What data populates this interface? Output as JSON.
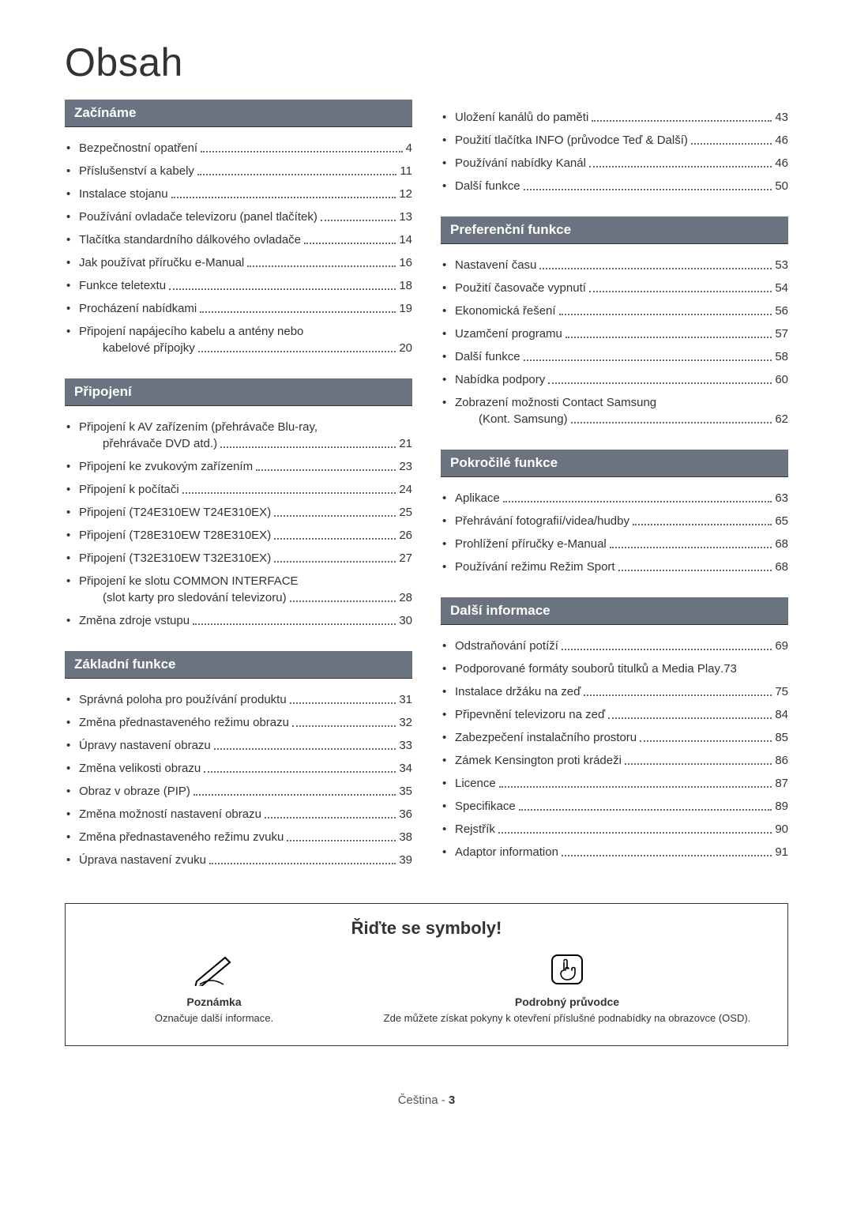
{
  "title": "Obsah",
  "sections_left": [
    {
      "name": "Začínáme",
      "items": [
        {
          "label": "Bezpečnostní opatření",
          "page": "4"
        },
        {
          "label": "Příslušenství a kabely",
          "page": "11"
        },
        {
          "label": "Instalace stojanu",
          "page": "12"
        },
        {
          "label": "Používání ovladače televizoru (panel tlačítek)",
          "page": "13"
        },
        {
          "label": "Tlačítka standardního dálkového ovladače",
          "page": "14"
        },
        {
          "label": "Jak používat příručku e-Manual",
          "page": "16"
        },
        {
          "label": "Funkce teletextu",
          "page": "18"
        },
        {
          "label": "Procházení nabídkami",
          "page": "19"
        },
        {
          "label": "Připojení napájecího kabelu a antény nebo",
          "sub": "kabelové přípojky",
          "page": "20"
        }
      ]
    },
    {
      "name": "Připojení",
      "items": [
        {
          "label": "Připojení k AV zařízením (přehrávače Blu-ray,",
          "sub": "přehrávače DVD atd.)",
          "page": "21"
        },
        {
          "label": "Připojení ke zvukovým zařízením",
          "page": "23"
        },
        {
          "label": "Připojení k počítači",
          "page": "24"
        },
        {
          "label": "Připojení (T24E310EW T24E310EX)",
          "page": "25"
        },
        {
          "label": "Připojení (T28E310EW T28E310EX)",
          "page": "26"
        },
        {
          "label": "Připojení (T32E310EW T32E310EX)",
          "page": "27"
        },
        {
          "label": "Připojení ke slotu COMMON INTERFACE",
          "sub": "(slot karty pro sledování televizoru)",
          "page": "28"
        },
        {
          "label": "Změna zdroje vstupu",
          "page": "30"
        }
      ]
    },
    {
      "name": "Základní funkce",
      "items": [
        {
          "label": "Správná poloha pro používání produktu",
          "page": "31"
        },
        {
          "label": "Změna přednastaveného režimu obrazu",
          "page": "32"
        },
        {
          "label": "Úpravy nastavení obrazu",
          "page": "33"
        },
        {
          "label": "Změna velikosti obrazu",
          "page": "34"
        },
        {
          "label": "Obraz v obraze (PIP)",
          "page": "35"
        },
        {
          "label": "Změna možností nastavení obrazu",
          "page": "36"
        },
        {
          "label": "Změna přednastaveného režimu zvuku",
          "page": "38"
        },
        {
          "label": "Úprava nastavení zvuku",
          "page": "39"
        }
      ]
    }
  ],
  "sections_right": [
    {
      "name": "",
      "items": [
        {
          "label": "Uložení kanálů do paměti",
          "page": "43"
        },
        {
          "label": "Použití tlačítka INFO (průvodce Teď & Další)",
          "page": "46"
        },
        {
          "label": "Používání nabídky Kanál",
          "page": "46"
        },
        {
          "label": "Další funkce",
          "page": "50"
        }
      ]
    },
    {
      "name": "Preferenční funkce",
      "items": [
        {
          "label": "Nastavení času",
          "page": "53"
        },
        {
          "label": "Použití časovače vypnutí",
          "page": "54"
        },
        {
          "label": "Ekonomická řešení",
          "page": "56"
        },
        {
          "label": "Uzamčení programu",
          "page": "57"
        },
        {
          "label": "Další funkce",
          "page": "58"
        },
        {
          "label": "Nabídka podpory",
          "page": "60"
        },
        {
          "label": "Zobrazení možnosti Contact Samsung",
          "sub": "(Kont. Samsung)",
          "page": "62"
        }
      ]
    },
    {
      "name": "Pokročilé funkce",
      "items": [
        {
          "label": "Aplikace",
          "page": "63"
        },
        {
          "label": "Přehrávání fotografií/videa/hudby",
          "page": "65"
        },
        {
          "label": "Prohlížení příručky e-Manual",
          "page": "68"
        },
        {
          "label": "Používání režimu Režim Sport",
          "page": "68"
        }
      ]
    },
    {
      "name": "Další informace",
      "items": [
        {
          "label": "Odstraňování potíží",
          "page": "69"
        },
        {
          "label": "Podporované formáty souborů titulků a Media Play",
          "page": "73",
          "nodots": true
        },
        {
          "label": "Instalace držáku na zeď",
          "page": "75"
        },
        {
          "label": "Připevnění televizoru na zeď",
          "page": "84"
        },
        {
          "label": "Zabezpečení instalačního prostoru",
          "page": "85"
        },
        {
          "label": "Zámek Kensington proti krádeži",
          "page": "86"
        },
        {
          "label": "Licence",
          "page": "87"
        },
        {
          "label": "Specifikace",
          "page": "89"
        },
        {
          "label": "Rejstřík",
          "page": "90"
        },
        {
          "label": "Adaptor information",
          "page": "91"
        }
      ]
    }
  ],
  "symbols": {
    "title": "Řiďte se symboly!",
    "note": {
      "name": "Poznámka",
      "desc": "Označuje další informace."
    },
    "guide": {
      "name": "Podrobný průvodce",
      "desc": "Zde můžete získat pokyny k otevření příslušné podnabídky na obrazovce (OSD)."
    }
  },
  "footer": {
    "lang": "Čeština - ",
    "page": "3"
  }
}
